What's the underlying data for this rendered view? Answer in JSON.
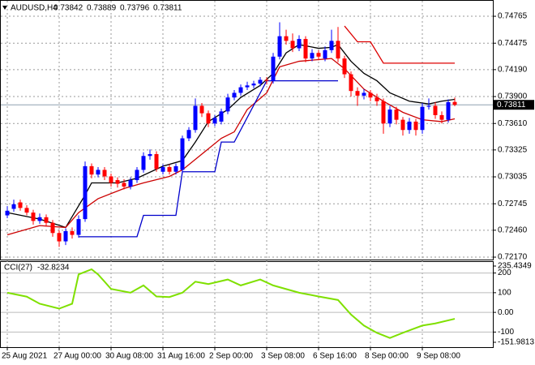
{
  "chart_data": [
    {
      "type": "candlestick",
      "title": "AUDUSD,H4",
      "categories": [
        "25 Aug 2021",
        null,
        null,
        null,
        null,
        null,
        null,
        null,
        "27 Aug 00:00",
        null,
        null,
        null,
        null,
        null,
        null,
        null,
        "30 Aug 08:00",
        null,
        null,
        null,
        null,
        null,
        null,
        null,
        "31 Aug 16:00",
        null,
        null,
        null,
        null,
        null,
        null,
        null,
        "2 Sep 00:00",
        null,
        null,
        null,
        null,
        null,
        null,
        null,
        "3 Sep 08:00",
        null,
        null,
        null,
        null,
        null,
        null,
        null,
        "6 Sep 16:00",
        null,
        null,
        null,
        null,
        null,
        null,
        null,
        "8 Sep 00:00",
        null,
        null,
        null,
        null,
        null,
        null,
        null,
        "9 Sep 08:00",
        null,
        null,
        null,
        null,
        null
      ],
      "open": [
        0.7262,
        0.7269,
        0.7276,
        0.727,
        0.7265,
        0.7256,
        0.726,
        0.7254,
        0.7243,
        0.7234,
        0.7245,
        0.7241,
        0.7258,
        0.7315,
        0.7306,
        0.7311,
        0.7304,
        0.73,
        0.7297,
        0.7293,
        0.73,
        0.7311,
        0.7326,
        0.7328,
        0.7309,
        0.7314,
        0.7309,
        0.7311,
        0.7345,
        0.7354,
        0.738,
        0.7372,
        0.7361,
        0.7363,
        0.7374,
        0.7389,
        0.7394,
        0.74,
        0.7402,
        0.7404,
        0.7408,
        0.7407,
        0.7433,
        0.7455,
        0.745,
        0.7442,
        0.7452,
        0.7431,
        0.7437,
        0.7431,
        0.744,
        0.745,
        0.7431,
        0.7414,
        0.7396,
        0.7391,
        0.7394,
        0.7389,
        0.7385,
        0.7361,
        0.7376,
        0.7365,
        0.7354,
        0.7363,
        0.7354,
        0.7379,
        0.738,
        0.737,
        0.7365,
        0.73842
      ],
      "high": [
        0.7272,
        0.7279,
        0.7279,
        0.7273,
        0.7268,
        0.7264,
        0.7263,
        0.7257,
        0.7246,
        0.7248,
        0.7249,
        0.7262,
        0.732,
        0.7318,
        0.7314,
        0.7314,
        0.7307,
        0.7303,
        0.7301,
        0.7303,
        0.7314,
        0.733,
        0.7333,
        0.7331,
        0.7317,
        0.7317,
        0.7318,
        0.7348,
        0.7357,
        0.7388,
        0.7383,
        0.7375,
        0.737,
        0.7377,
        0.7393,
        0.7397,
        0.7403,
        0.7406,
        0.7407,
        0.7411,
        0.7411,
        0.7437,
        0.747,
        0.7462,
        0.7458,
        0.7456,
        0.7455,
        0.7441,
        0.744,
        0.7444,
        0.7462,
        0.7465,
        0.7434,
        0.7417,
        0.74,
        0.7398,
        0.7397,
        0.7393,
        0.7388,
        0.738,
        0.7379,
        0.7368,
        0.7367,
        0.7366,
        0.7383,
        0.7388,
        0.7384,
        0.7374,
        0.7387,
        0.73889
      ],
      "low": [
        0.7259,
        0.7266,
        0.7267,
        0.7262,
        0.7252,
        0.7253,
        0.725,
        0.7239,
        0.7228,
        0.723,
        0.7237,
        0.7238,
        0.7255,
        0.7302,
        0.7303,
        0.73,
        0.7293,
        0.7292,
        0.729,
        0.729,
        0.7297,
        0.7308,
        0.7322,
        0.7309,
        0.7306,
        0.7306,
        0.7306,
        0.7308,
        0.7342,
        0.7351,
        0.7368,
        0.7357,
        0.7358,
        0.736,
        0.7371,
        0.7386,
        0.7391,
        0.7397,
        0.7399,
        0.7401,
        0.7403,
        0.7404,
        0.743,
        0.7446,
        0.7438,
        0.7439,
        0.7427,
        0.7428,
        0.7429,
        0.7428,
        0.7437,
        0.7427,
        0.741,
        0.739,
        0.738,
        0.7387,
        0.7385,
        0.738,
        0.735,
        0.7357,
        0.736,
        0.7348,
        0.735,
        0.7348,
        0.735,
        0.7376,
        0.7366,
        0.7361,
        0.7362,
        0.73796
      ],
      "close": [
        0.7267,
        0.7274,
        0.727,
        0.7265,
        0.7256,
        0.726,
        0.7254,
        0.7243,
        0.7234,
        0.7245,
        0.7241,
        0.7258,
        0.7315,
        0.7306,
        0.7311,
        0.7304,
        0.7297,
        0.7296,
        0.7293,
        0.73,
        0.7311,
        0.7326,
        0.7328,
        0.7312,
        0.7314,
        0.7309,
        0.7315,
        0.7345,
        0.7354,
        0.738,
        0.7372,
        0.7361,
        0.7367,
        0.7374,
        0.7389,
        0.7394,
        0.74,
        0.7402,
        0.7404,
        0.7408,
        0.7407,
        0.7433,
        0.7455,
        0.745,
        0.7442,
        0.7452,
        0.7431,
        0.7437,
        0.7433,
        0.744,
        0.745,
        0.7431,
        0.7414,
        0.7396,
        0.7391,
        0.7394,
        0.7389,
        0.7385,
        0.7361,
        0.7376,
        0.7365,
        0.7354,
        0.7363,
        0.7354,
        0.7379,
        0.738,
        0.737,
        0.7365,
        0.7384,
        0.73811
      ],
      "up_color": "#0000ff",
      "down_color": "#ff0000",
      "overlays": [
        {
          "color": "#000000",
          "x": [
            0,
            5,
            9,
            12,
            13,
            17,
            20,
            24,
            27,
            29,
            31,
            34,
            36,
            39,
            41,
            43,
            45,
            48,
            50,
            51,
            53,
            55,
            57,
            59,
            62,
            65,
            67,
            69
          ],
          "values": [
            0.7265,
            0.7258,
            0.7249,
            0.7284,
            0.7297,
            0.7297,
            0.7302,
            0.7315,
            0.7321,
            0.7341,
            0.7363,
            0.7376,
            0.7389,
            0.7402,
            0.7415,
            0.7437,
            0.7446,
            0.7442,
            0.7443,
            0.7446,
            0.7428,
            0.7415,
            0.7407,
            0.7394,
            0.7385,
            0.7382,
            0.7385,
            0.7387
          ]
        },
        {
          "color": "#cc0000",
          "x": [
            0,
            5,
            9,
            11,
            14,
            18,
            21,
            25,
            27,
            30,
            33,
            35,
            37,
            40,
            42,
            45,
            50,
            52,
            55,
            58,
            61,
            64,
            67,
            69
          ],
          "values": [
            0.7241,
            0.7251,
            0.7249,
            0.7265,
            0.728,
            0.7291,
            0.7297,
            0.7304,
            0.7311,
            0.7328,
            0.7345,
            0.7352,
            0.7376,
            0.7394,
            0.7422,
            0.7428,
            0.7431,
            0.742,
            0.7398,
            0.7385,
            0.7373,
            0.7365,
            0.7363,
            0.7366
          ]
        },
        {
          "color": "#0000cc",
          "x": [
            11,
            20,
            21,
            26,
            27,
            32,
            33,
            35,
            40,
            51
          ],
          "values": [
            0.7239,
            0.7239,
            0.7262,
            0.7262,
            0.7309,
            0.7309,
            0.7341,
            0.7341,
            0.7407,
            0.7407
          ]
        },
        {
          "color": "#dd0000",
          "x": [
            52,
            54,
            56,
            58,
            69
          ],
          "values": [
            0.7466,
            0.7449,
            0.7449,
            0.7426,
            0.7426
          ]
        }
      ],
      "ylim": [
        0.72144,
        0.74914
      ],
      "yticks": [
        0.74765,
        0.74475,
        {
          "value": 0.7419,
          "label": "0.74190"
        },
        {
          "value": 0.739,
          "label": "0.73900"
        },
        {
          "value": 0.7361,
          "label": "0.73610"
        },
        0.73325,
        0.73035,
        0.72745,
        {
          "value": 0.7246,
          "label": "0.72460"
        },
        {
          "value": 0.7217,
          "label": "0.72170"
        }
      ],
      "grid": true
    },
    {
      "type": "line",
      "title": "CCI(27)",
      "x": [
        0,
        3,
        5,
        8,
        10,
        11,
        13,
        14,
        16,
        19,
        21,
        23,
        25,
        27,
        29,
        31,
        34,
        36,
        39,
        41,
        45,
        48,
        51,
        53,
        55,
        57,
        59,
        61,
        64,
        66,
        69
      ],
      "values": [
        100,
        80,
        44,
        19,
        44,
        193,
        219,
        193,
        119,
        100,
        137,
        81,
        78,
        100,
        156,
        144,
        167,
        137,
        167,
        137,
        100,
        81,
        63,
        -11,
        -67,
        -104,
        -130,
        -104,
        -67,
        -56,
        -32.8234
      ],
      "color": "#7fe000",
      "ylim": [
        -151.9813,
        235.4349
      ],
      "yticks": [
        235.4349,
        200,
        100,
        {
          "value": 0,
          "label": "0.00"
        },
        -100,
        -151.9813
      ]
    }
  ]
}
